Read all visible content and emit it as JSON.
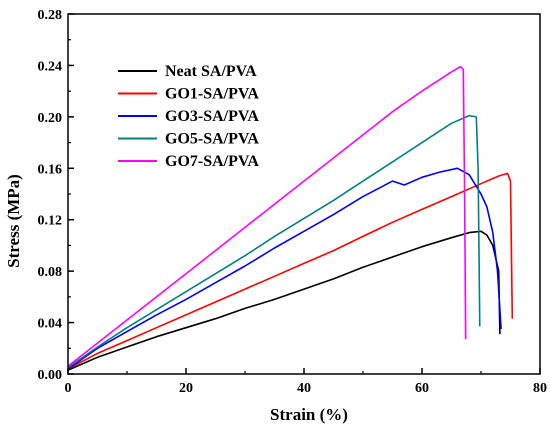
{
  "chart_data": {
    "type": "line",
    "title": "",
    "xlabel": "Strain (%)",
    "ylabel": "Stress (MPa)",
    "xlim": [
      0,
      80
    ],
    "ylim": [
      0,
      0.28
    ],
    "xticks": [
      0,
      20,
      40,
      60,
      80
    ],
    "yticks": [
      0.0,
      0.04,
      0.08,
      0.12,
      0.16,
      0.2,
      0.24,
      0.28
    ],
    "ytick_labels": [
      "0.00",
      "0.04",
      "0.08",
      "0.12",
      "0.16",
      "0.20",
      "0.24",
      "0.28"
    ],
    "grid": false,
    "legend_position": "upper-left",
    "series": [
      {
        "name": "Neat SA/PVA",
        "color": "#000000",
        "x": [
          0,
          5,
          10,
          15,
          20,
          25,
          30,
          35,
          40,
          45,
          50,
          55,
          60,
          65,
          68,
          70,
          71,
          72,
          73,
          73.2
        ],
        "y": [
          0.003,
          0.013,
          0.021,
          0.029,
          0.036,
          0.043,
          0.051,
          0.058,
          0.066,
          0.074,
          0.083,
          0.091,
          0.099,
          0.106,
          0.11,
          0.111,
          0.108,
          0.1,
          0.08,
          0.031
        ]
      },
      {
        "name": "GO1-SA/PVA",
        "color": "#ff0000",
        "x": [
          0,
          5,
          10,
          15,
          20,
          25,
          30,
          35,
          40,
          45,
          50,
          55,
          60,
          65,
          70,
          73,
          74.5,
          75,
          75.3
        ],
        "y": [
          0.004,
          0.016,
          0.026,
          0.036,
          0.046,
          0.056,
          0.066,
          0.076,
          0.086,
          0.096,
          0.107,
          0.118,
          0.128,
          0.138,
          0.148,
          0.154,
          0.156,
          0.15,
          0.043
        ]
      },
      {
        "name": "GO3-SA/PVA",
        "color": "#0000ff",
        "x": [
          0,
          5,
          10,
          15,
          20,
          25,
          30,
          35,
          40,
          45,
          50,
          55,
          57,
          60,
          63,
          66,
          68,
          70,
          71,
          72,
          72.8,
          73.2,
          73.4
        ],
        "y": [
          0.004,
          0.02,
          0.033,
          0.046,
          0.058,
          0.071,
          0.084,
          0.098,
          0.111,
          0.124,
          0.138,
          0.15,
          0.147,
          0.153,
          0.157,
          0.16,
          0.155,
          0.14,
          0.13,
          0.11,
          0.08,
          0.05,
          0.035
        ]
      },
      {
        "name": "GO5-SA/PVA",
        "color": "#008080",
        "x": [
          0,
          5,
          10,
          15,
          20,
          25,
          30,
          35,
          40,
          45,
          50,
          55,
          60,
          65,
          68,
          69.2,
          69.5,
          69.8
        ],
        "y": [
          0.005,
          0.021,
          0.036,
          0.05,
          0.064,
          0.078,
          0.092,
          0.107,
          0.121,
          0.135,
          0.15,
          0.165,
          0.18,
          0.195,
          0.201,
          0.2,
          0.16,
          0.037
        ]
      },
      {
        "name": "GO7-SA/PVA",
        "color": "#ff00ff",
        "x": [
          0,
          5,
          10,
          15,
          20,
          25,
          30,
          35,
          40,
          45,
          50,
          55,
          60,
          65,
          66.5,
          67,
          67.2,
          67.4
        ],
        "y": [
          0.006,
          0.024,
          0.042,
          0.06,
          0.078,
          0.096,
          0.114,
          0.132,
          0.15,
          0.168,
          0.186,
          0.204,
          0.22,
          0.235,
          0.239,
          0.237,
          0.15,
          0.027
        ]
      }
    ]
  }
}
